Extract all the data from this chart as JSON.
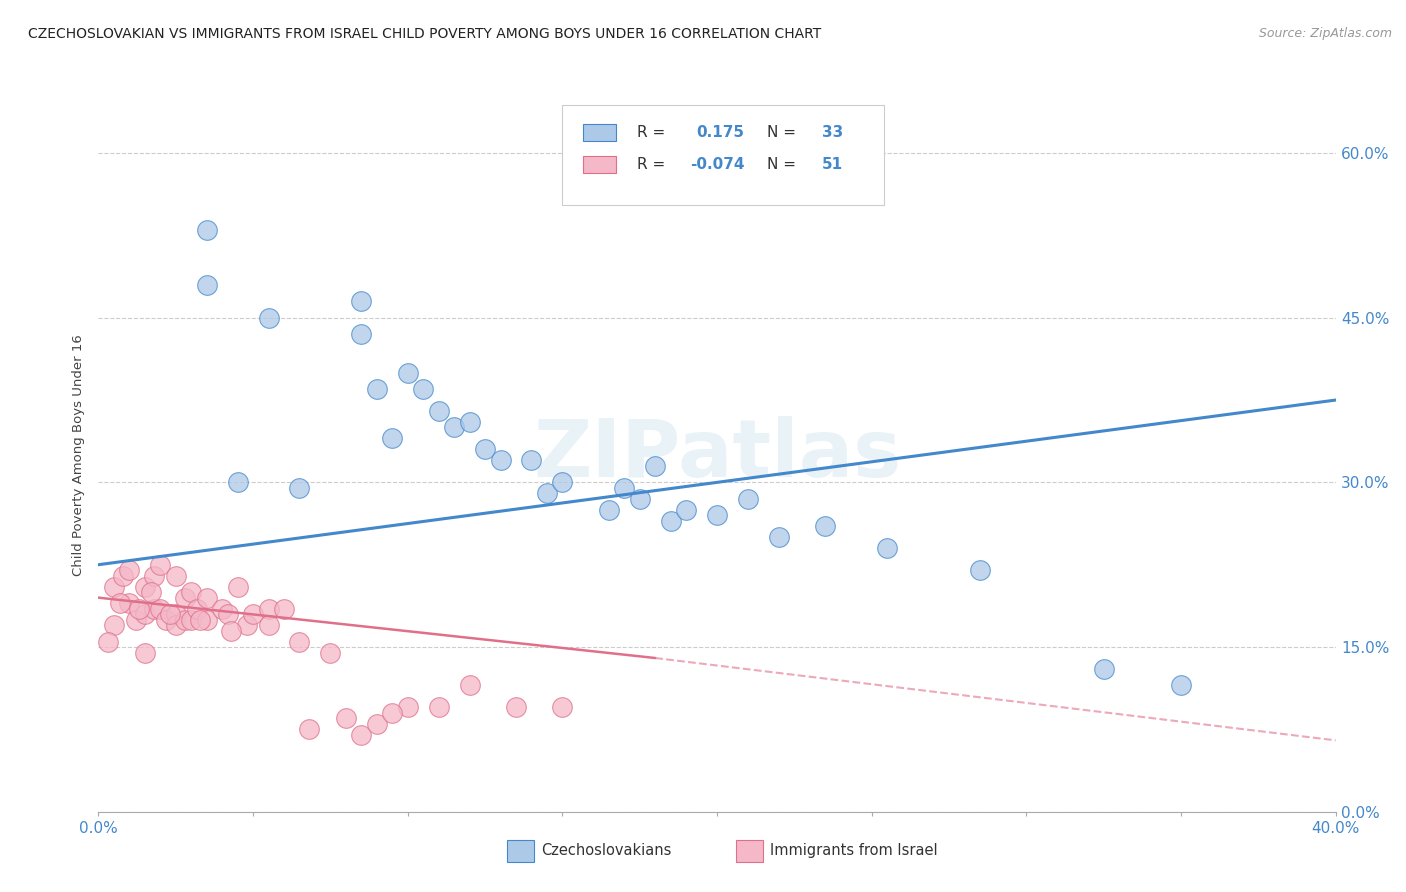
{
  "title": "CZECHOSLOVAKIAN VS IMMIGRANTS FROM ISRAEL CHILD POVERTY AMONG BOYS UNDER 16 CORRELATION CHART",
  "source": "Source: ZipAtlas.com",
  "ylabel": "Child Poverty Among Boys Under 16",
  "ytick_vals": [
    0.0,
    15.0,
    30.0,
    45.0,
    60.0
  ],
  "color_czech": "#adc9e8",
  "color_israel": "#f4b8c8",
  "color_czech_line": "#4488cc",
  "color_israel_line": "#e0708a",
  "watermark_text": "ZIPatlas",
  "czech_r": 0.175,
  "czech_n": 33,
  "israel_r": -0.074,
  "israel_n": 51,
  "czech_line_x0": 0.0,
  "czech_line_y0": 22.5,
  "czech_line_x1": 40.0,
  "czech_line_y1": 37.5,
  "israel_line_x0": 0.0,
  "israel_line_y0": 19.5,
  "israel_line_x1": 18.0,
  "israel_line_y1": 14.0,
  "israel_dash_x0": 18.0,
  "israel_dash_y0": 14.0,
  "israel_dash_x1": 40.0,
  "israel_dash_y1": 6.5,
  "czech_x": [
    3.5,
    3.5,
    5.5,
    8.5,
    8.5,
    9.0,
    9.5,
    10.0,
    10.5,
    11.0,
    11.5,
    12.0,
    12.5,
    13.0,
    14.0,
    14.5,
    15.0,
    16.5,
    17.0,
    17.5,
    18.0,
    18.5,
    19.0,
    20.0,
    21.0,
    22.0,
    23.5,
    25.5,
    28.5,
    35.0,
    4.5,
    6.5,
    32.5
  ],
  "czech_y": [
    53.0,
    48.0,
    45.0,
    43.5,
    46.5,
    38.5,
    34.0,
    40.0,
    38.5,
    36.5,
    35.0,
    35.5,
    33.0,
    32.0,
    32.0,
    29.0,
    30.0,
    27.5,
    29.5,
    28.5,
    31.5,
    26.5,
    27.5,
    27.0,
    28.5,
    25.0,
    26.0,
    24.0,
    22.0,
    11.5,
    30.0,
    29.5,
    13.0
  ],
  "israel_x": [
    0.5,
    0.5,
    0.8,
    1.0,
    1.0,
    1.2,
    1.5,
    1.5,
    1.5,
    1.8,
    1.8,
    2.0,
    2.0,
    2.2,
    2.5,
    2.5,
    2.5,
    2.8,
    2.8,
    3.0,
    3.0,
    3.2,
    3.5,
    3.5,
    4.0,
    4.2,
    4.5,
    4.8,
    5.0,
    5.5,
    6.0,
    6.5,
    7.5,
    8.5,
    9.0,
    10.0,
    11.0,
    12.0,
    13.5,
    0.3,
    0.7,
    1.3,
    1.7,
    2.3,
    3.3,
    4.3,
    5.5,
    6.8,
    8.0,
    9.5,
    15.0
  ],
  "israel_y": [
    20.5,
    17.0,
    21.5,
    19.0,
    22.0,
    17.5,
    20.5,
    18.0,
    14.5,
    21.5,
    18.5,
    22.5,
    18.5,
    17.5,
    21.5,
    18.0,
    17.0,
    19.5,
    17.5,
    20.0,
    17.5,
    18.5,
    19.5,
    17.5,
    18.5,
    18.0,
    20.5,
    17.0,
    18.0,
    18.5,
    18.5,
    15.5,
    14.5,
    7.0,
    8.0,
    9.5,
    9.5,
    11.5,
    9.5,
    15.5,
    19.0,
    18.5,
    20.0,
    18.0,
    17.5,
    16.5,
    17.0,
    7.5,
    8.5,
    9.0,
    9.5
  ],
  "xmin": 0.0,
  "xmax": 40.0,
  "ymin": 0.0,
  "ymax": 65.0
}
